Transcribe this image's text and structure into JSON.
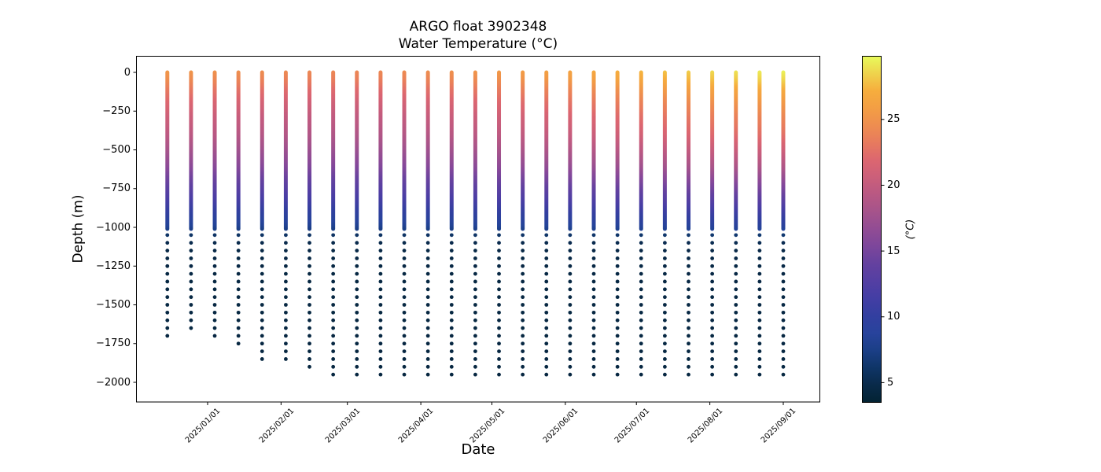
{
  "figure": {
    "title_line1": "ARGO float 3902348",
    "title_line2": "Water Temperature (°C)"
  },
  "chart_data": {
    "type": "scatter",
    "title": "ARGO float 3902348",
    "subtitle": "Water Temperature (°C)",
    "xlabel": "Date",
    "ylabel": "Depth (m)",
    "grid": false,
    "plot_background": "#ffffff",
    "ylim_m": [
      -2130,
      105
    ],
    "y_ticks": [
      {
        "label": "0",
        "value": 0
      },
      {
        "label": "−250",
        "value": -250
      },
      {
        "label": "−500",
        "value": -500
      },
      {
        "label": "−750",
        "value": -750
      },
      {
        "label": "−1000",
        "value": -1000
      },
      {
        "label": "−1250",
        "value": -1250
      },
      {
        "label": "−1500",
        "value": -1500
      },
      {
        "label": "−1750",
        "value": -1750
      },
      {
        "label": "−2000",
        "value": -2000
      }
    ],
    "x_ticks": [
      {
        "label": "2025/01/01",
        "date": "2025-01-01"
      },
      {
        "label": "2025/02/01",
        "date": "2025-02-01"
      },
      {
        "label": "2025/03/01",
        "date": "2025-03-01"
      },
      {
        "label": "2025/04/01",
        "date": "2025-04-01"
      },
      {
        "label": "2025/05/01",
        "date": "2025-05-01"
      },
      {
        "label": "2025/06/01",
        "date": "2025-06-01"
      },
      {
        "label": "2025/07/01",
        "date": "2025-07-01"
      },
      {
        "label": "2025/08/01",
        "date": "2025-08-01"
      },
      {
        "label": "2025/09/01",
        "date": "2025-09-01"
      }
    ],
    "colorbar": {
      "label": "(°C)",
      "ticks": [
        5,
        10,
        15,
        20,
        25
      ],
      "vmin": 3.5,
      "vmax": 29.8,
      "colormap_name": "thermal",
      "colormap_stops": [
        [
          0.0,
          "#032333"
        ],
        [
          0.06,
          "#0a2b4e"
        ],
        [
          0.12,
          "#123a73"
        ],
        [
          0.18,
          "#24449a"
        ],
        [
          0.25,
          "#333fa0"
        ],
        [
          0.32,
          "#4a3ea5"
        ],
        [
          0.4,
          "#64419f"
        ],
        [
          0.47,
          "#85489a"
        ],
        [
          0.55,
          "#a5538b"
        ],
        [
          0.62,
          "#c05a80"
        ],
        [
          0.7,
          "#dc6670"
        ],
        [
          0.76,
          "#e97e5b"
        ],
        [
          0.84,
          "#f29b45"
        ],
        [
          0.9,
          "#f6ad3d"
        ],
        [
          0.96,
          "#eed94f"
        ],
        [
          1.0,
          "#e8fa5b"
        ]
      ]
    },
    "profile_model": {
      "deep_temp_c": 4.0,
      "continuous_sampling_to_depth_m": 1010,
      "deep_dots_start_m": 1050,
      "deep_dot_spacing_m": 50,
      "temp_fraction_vs_depth_m": [
        [
          0,
          1.0
        ],
        [
          60,
          0.96
        ],
        [
          120,
          0.9
        ],
        [
          200,
          0.84
        ],
        [
          300,
          0.78
        ],
        [
          400,
          0.73
        ],
        [
          500,
          0.66
        ],
        [
          600,
          0.58
        ],
        [
          700,
          0.48
        ],
        [
          800,
          0.38
        ],
        [
          900,
          0.27
        ],
        [
          960,
          0.21
        ],
        [
          1000,
          0.165
        ],
        [
          1050,
          0.1
        ],
        [
          1100,
          0.05
        ],
        [
          1150,
          0.032
        ],
        [
          1300,
          0.022
        ],
        [
          2000,
          0.015
        ]
      ]
    },
    "profiles": [
      {
        "date": "2024-12-15",
        "surface_temp_c": 25.4,
        "max_depth_m": 1720
      },
      {
        "date": "2024-12-25",
        "surface_temp_c": 25.2,
        "max_depth_m": 1670
      },
      {
        "date": "2025-01-04",
        "surface_temp_c": 25.0,
        "max_depth_m": 1720
      },
      {
        "date": "2025-01-14",
        "surface_temp_c": 24.8,
        "max_depth_m": 1770
      },
      {
        "date": "2025-01-24",
        "surface_temp_c": 24.6,
        "max_depth_m": 1870
      },
      {
        "date": "2025-02-03",
        "surface_temp_c": 24.4,
        "max_depth_m": 1870
      },
      {
        "date": "2025-02-13",
        "surface_temp_c": 24.3,
        "max_depth_m": 1920
      },
      {
        "date": "2025-02-23",
        "surface_temp_c": 24.2,
        "max_depth_m": 1970
      },
      {
        "date": "2025-03-05",
        "surface_temp_c": 24.2,
        "max_depth_m": 1970
      },
      {
        "date": "2025-03-15",
        "surface_temp_c": 24.3,
        "max_depth_m": 1990
      },
      {
        "date": "2025-03-25",
        "surface_temp_c": 24.5,
        "max_depth_m": 1970
      },
      {
        "date": "2025-04-04",
        "surface_temp_c": 24.7,
        "max_depth_m": 1990
      },
      {
        "date": "2025-04-14",
        "surface_temp_c": 24.9,
        "max_depth_m": 1970
      },
      {
        "date": "2025-04-24",
        "surface_temp_c": 25.2,
        "max_depth_m": 1990
      },
      {
        "date": "2025-05-04",
        "surface_temp_c": 25.5,
        "max_depth_m": 1990
      },
      {
        "date": "2025-05-14",
        "surface_temp_c": 25.8,
        "max_depth_m": 1990
      },
      {
        "date": "2025-05-24",
        "surface_temp_c": 26.1,
        "max_depth_m": 1960
      },
      {
        "date": "2025-06-03",
        "surface_temp_c": 26.4,
        "max_depth_m": 1990
      },
      {
        "date": "2025-06-13",
        "surface_temp_c": 26.8,
        "max_depth_m": 1960
      },
      {
        "date": "2025-06-23",
        "surface_temp_c": 27.2,
        "max_depth_m": 1990
      },
      {
        "date": "2025-07-03",
        "surface_temp_c": 27.6,
        "max_depth_m": 1990
      },
      {
        "date": "2025-07-13",
        "surface_temp_c": 28.0,
        "max_depth_m": 1960
      },
      {
        "date": "2025-07-23",
        "surface_temp_c": 28.4,
        "max_depth_m": 1990
      },
      {
        "date": "2025-08-02",
        "surface_temp_c": 28.8,
        "max_depth_m": 1990
      },
      {
        "date": "2025-08-12",
        "surface_temp_c": 29.1,
        "max_depth_m": 1960
      },
      {
        "date": "2025-08-22",
        "surface_temp_c": 29.4,
        "max_depth_m": 1990
      },
      {
        "date": "2025-09-01",
        "surface_temp_c": 29.6,
        "max_depth_m": 1990
      }
    ]
  }
}
